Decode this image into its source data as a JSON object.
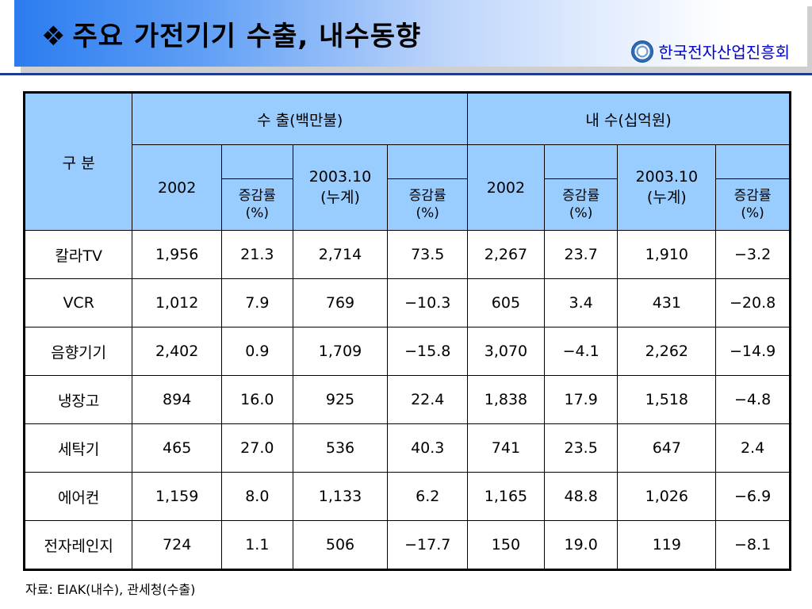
{
  "title": {
    "bullet": "❖",
    "text": "주요 가전기기 수출, 내수동향"
  },
  "org": {
    "logo_icon": "kea-logo-icon",
    "name": "한국전자산업진흥회"
  },
  "colors": {
    "header_fill": "#99ccff",
    "org_text": "#0000cc",
    "rule": "#1f3a93"
  },
  "table": {
    "corner": "구  분",
    "group_export": "수      출(백만불)",
    "group_domestic": "내      수(십억원)",
    "export_year": "2002",
    "export_period": "2003.10\n(누계)",
    "domestic_year": "2002",
    "domestic_period": "2003.10\n(누계)",
    "rate_label": "증감률\n(%)",
    "rows": [
      {
        "item": "칼라TV",
        "values": [
          "1,956",
          "21.3",
          "2,714",
          "73.5",
          "2,267",
          "23.7",
          "1,910",
          "−3.2"
        ]
      },
      {
        "item": "VCR",
        "values": [
          "1,012",
          "7.9",
          "769",
          "−10.3",
          "605",
          "3.4",
          "431",
          "−20.8"
        ]
      },
      {
        "item": "음향기기",
        "values": [
          "2,402",
          "0.9",
          "1,709",
          "−15.8",
          "3,070",
          "−4.1",
          "2,262",
          "−14.9"
        ]
      },
      {
        "item": "냉장고",
        "values": [
          "894",
          "16.0",
          "925",
          "22.4",
          "1,838",
          "17.9",
          "1,518",
          "−4.8"
        ]
      },
      {
        "item": "세탁기",
        "values": [
          "465",
          "27.0",
          "536",
          "40.3",
          "741",
          "23.5",
          "647",
          "2.4"
        ]
      },
      {
        "item": "에어컨",
        "values": [
          "1,159",
          "8.0",
          "1,133",
          "6.2",
          "1,165",
          "48.8",
          "1,026",
          "−6.9"
        ]
      },
      {
        "item": "전자레인지",
        "values": [
          "724",
          "1.1",
          "506",
          "−17.7",
          "150",
          "19.0",
          "119",
          "−8.1"
        ]
      }
    ]
  },
  "source": "자료: EIAK(내수), 관세청(수출)"
}
